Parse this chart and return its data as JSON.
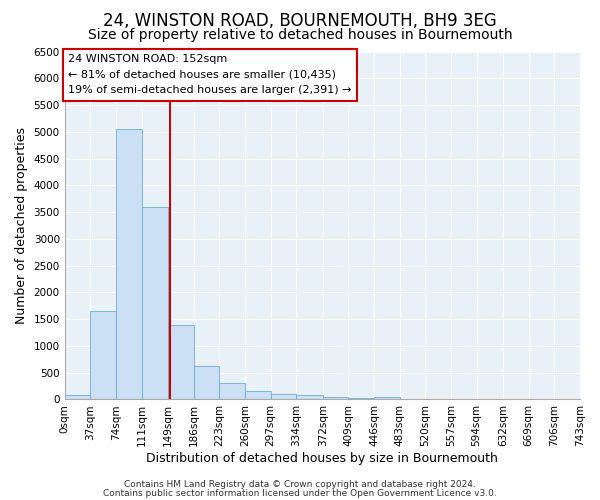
{
  "title": "24, WINSTON ROAD, BOURNEMOUTH, BH9 3EG",
  "subtitle": "Size of property relative to detached houses in Bournemouth",
  "xlabel": "Distribution of detached houses by size in Bournemouth",
  "ylabel": "Number of detached properties",
  "bar_edges": [
    0,
    37,
    74,
    111,
    149,
    186,
    223,
    260,
    297,
    334,
    372,
    409,
    446,
    483,
    520,
    557,
    594,
    632,
    669,
    706,
    743
  ],
  "bar_heights": [
    75,
    1650,
    5050,
    3600,
    1400,
    620,
    300,
    160,
    110,
    75,
    50,
    35,
    50,
    0,
    0,
    0,
    0,
    0,
    0,
    0
  ],
  "bar_color": "#cce0f5",
  "bar_edge_color": "#6aadd5",
  "vline_x": 152,
  "vline_color": "#cc0000",
  "annotation_text": "24 WINSTON ROAD: 152sqm\n← 81% of detached houses are smaller (10,435)\n19% of semi-detached houses are larger (2,391) →",
  "annotation_box_color": "#ffffff",
  "annotation_box_edge": "#cc0000",
  "ylim": [
    0,
    6500
  ],
  "yticks": [
    0,
    500,
    1000,
    1500,
    2000,
    2500,
    3000,
    3500,
    4000,
    4500,
    5000,
    5500,
    6000,
    6500
  ],
  "footer1": "Contains HM Land Registry data © Crown copyright and database right 2024.",
  "footer2": "Contains public sector information licensed under the Open Government Licence v3.0.",
  "background_color": "#ffffff",
  "plot_background": "#e8f0f8",
  "grid_color": "#ffffff",
  "title_fontsize": 12,
  "subtitle_fontsize": 10,
  "axis_label_fontsize": 9,
  "tick_fontsize": 7.5,
  "footer_fontsize": 6.5
}
